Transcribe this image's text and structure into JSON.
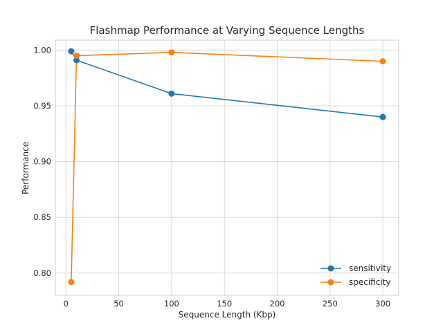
{
  "chart_data": {
    "type": "line",
    "title": "Flashmap Performance at Varying Sequence Lengths",
    "xlabel": "Sequence Length (Kbp)",
    "ylabel": "Performance",
    "xlim": [
      -10,
      315
    ],
    "ylim": [
      0.78,
      1.009
    ],
    "xticks": [
      0,
      50,
      100,
      150,
      200,
      250,
      300
    ],
    "yticks": [
      0.8,
      0.85,
      0.9,
      0.95,
      1.0
    ],
    "xtick_labels": [
      "0",
      "50",
      "100",
      "150",
      "200",
      "250",
      "300"
    ],
    "ytick_labels": [
      "0.80",
      "0.85",
      "0.90",
      "0.95",
      "1.00"
    ],
    "grid": true,
    "legend_position": "lower-right",
    "series": [
      {
        "name": "sensitivity",
        "color": "#1f77b4",
        "x": [
          5,
          10,
          100,
          300
        ],
        "y": [
          0.999,
          0.991,
          0.961,
          0.94
        ]
      },
      {
        "name": "specificity",
        "color": "#ff7f0e",
        "x": [
          5,
          10,
          100,
          300
        ],
        "y": [
          0.792,
          0.995,
          0.998,
          0.99
        ]
      }
    ]
  }
}
